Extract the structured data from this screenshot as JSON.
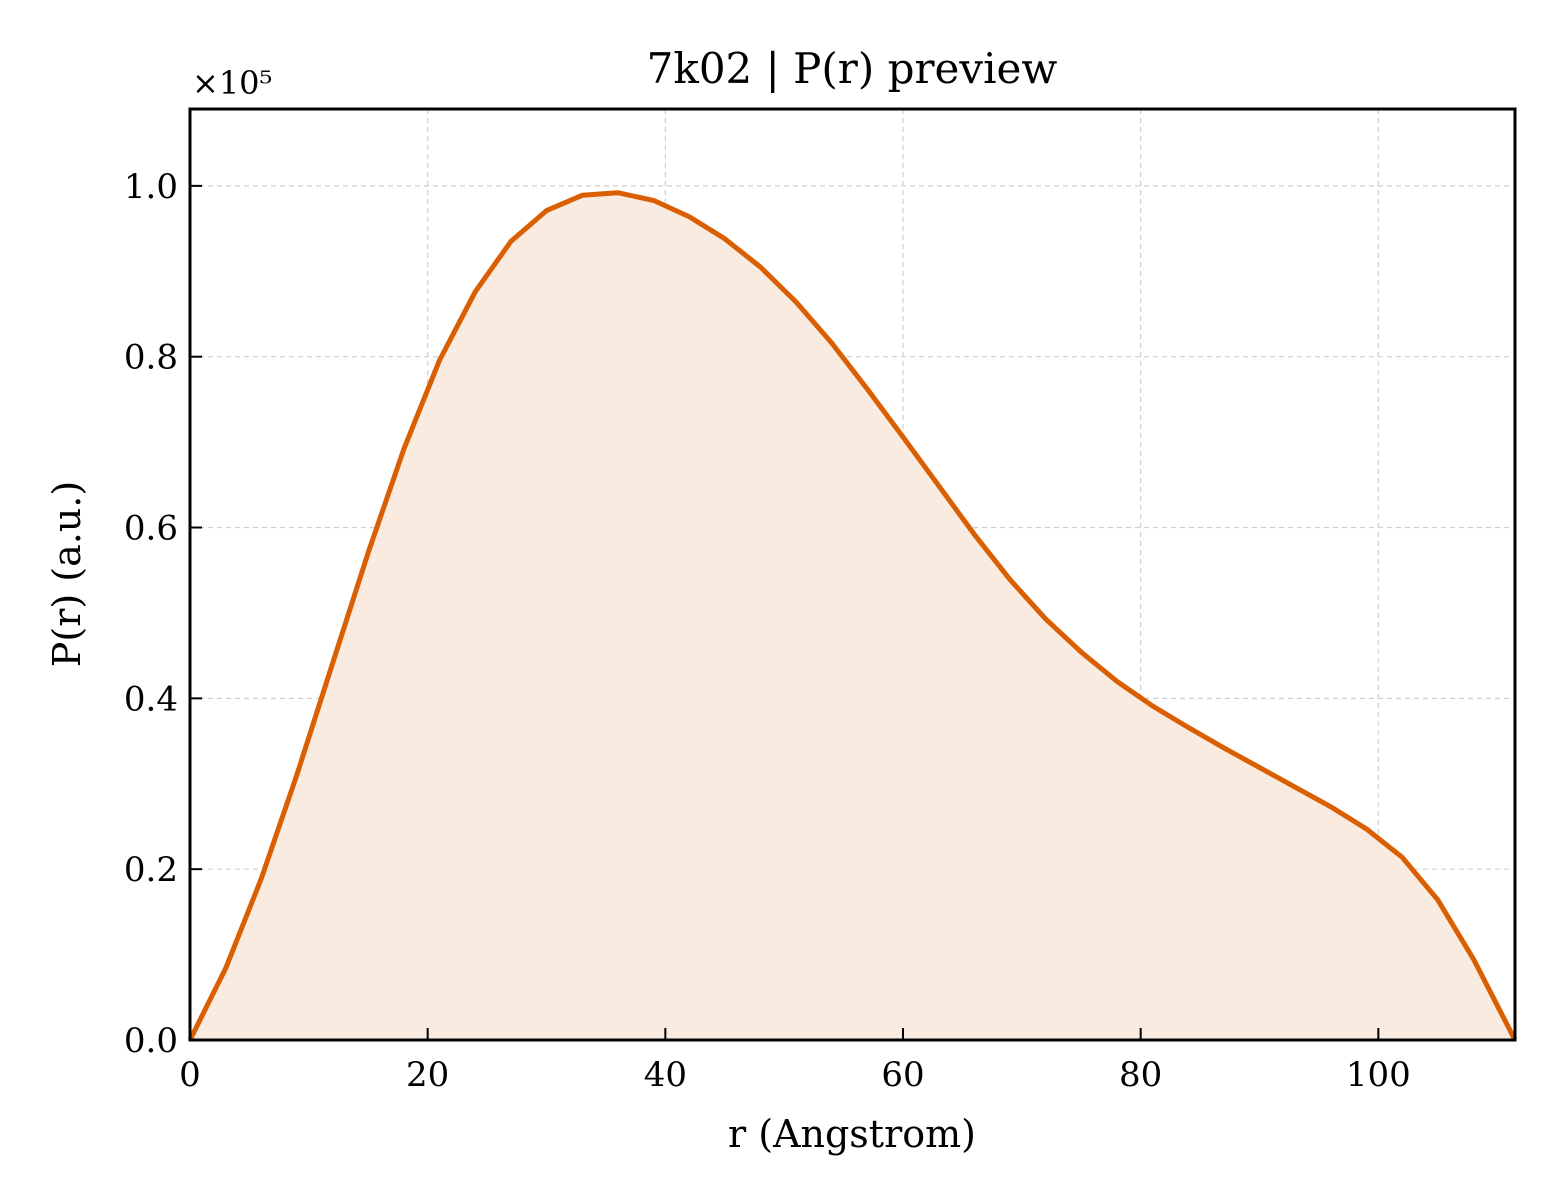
{
  "chart_data": {
    "type": "area",
    "title": "7k02 | P(r) preview",
    "xlabel": "r (Angstrom)",
    "ylabel": "P(r) (a.u.)",
    "y_offset_label": "×10⁵",
    "xlim": [
      0,
      111.5
    ],
    "ylim": [
      0,
      1.09
    ],
    "x_ticks": [
      0,
      20,
      40,
      60,
      80,
      100
    ],
    "x_tick_labels": [
      "0",
      "20",
      "40",
      "60",
      "80",
      "100"
    ],
    "y_ticks": [
      0,
      0.2,
      0.4,
      0.6,
      0.8,
      1.0
    ],
    "y_tick_labels": [
      "0.0",
      "0.2",
      "0.4",
      "0.6",
      "0.8",
      "1.0"
    ],
    "grid": true,
    "line_color": "#d95f02",
    "fill_color": "#f9ebe0",
    "series": [
      {
        "x": [
          0,
          3,
          6,
          9,
          12,
          15,
          18,
          21,
          24,
          27,
          30,
          33,
          36,
          39,
          42,
          45,
          48,
          51,
          54,
          57,
          60,
          63,
          66,
          69,
          72,
          75,
          78,
          81,
          84,
          87,
          90,
          93,
          96,
          99,
          102,
          105,
          108,
          111.5
        ],
        "y": [
          0.0,
          0.084,
          0.189,
          0.311,
          0.441,
          0.571,
          0.692,
          0.796,
          0.876,
          0.935,
          0.971,
          0.989,
          0.992,
          0.983,
          0.964,
          0.938,
          0.905,
          0.864,
          0.816,
          0.762,
          0.706,
          0.649,
          0.592,
          0.539,
          0.493,
          0.454,
          0.42,
          0.391,
          0.366,
          0.342,
          0.319,
          0.296,
          0.273,
          0.247,
          0.214,
          0.164,
          0.095,
          0.0
        ]
      }
    ]
  }
}
